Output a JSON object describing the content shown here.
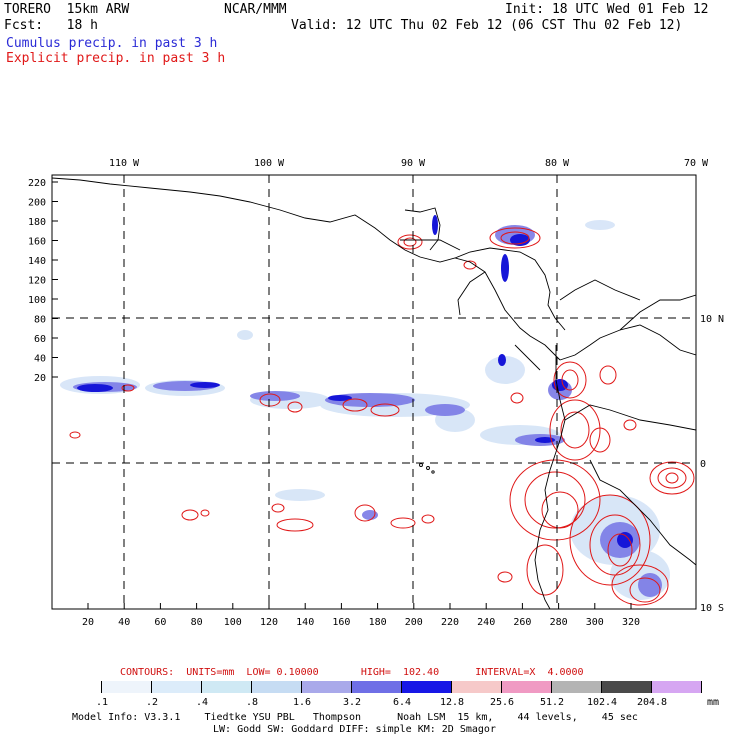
{
  "header": {
    "model": "TORERO  15km ARW",
    "org": "NCAR/MMM",
    "init": "Init: 18 UTC Wed 01 Feb 12",
    "fcst": "Fcst:   18 h",
    "valid": "Valid: 12 UTC Thu 02 Feb 12 (06 CST Thu 02 Feb 12)",
    "cumulus": "Cumulus precip. in past 3 h",
    "explicit": "Explicit precip. in past 3 h"
  },
  "map": {
    "top_lon_labels": [
      "110 W",
      "100 W",
      "90 W",
      "80 W",
      "70 W"
    ],
    "right_lat_labels": [
      "10 N",
      "0",
      "10 S"
    ],
    "y_axis_labels": [
      "220",
      "200",
      "180",
      "160",
      "140",
      "120",
      "100",
      "80",
      "60",
      "40",
      "20"
    ],
    "x_axis_labels": [
      "20",
      "40",
      "60",
      "80",
      "100",
      "120",
      "140",
      "160",
      "180",
      "200",
      "220",
      "240",
      "260",
      "280",
      "300",
      "320"
    ]
  },
  "legend": {
    "contours_text": "CONTOURS:  UNITS=mm  LOW= 0.10000       HIGH=  102.40      INTERVAL=X  4.0000",
    "colorbar_labels": [
      ".1",
      ".2",
      ".4",
      ".8",
      "1.6",
      "3.2",
      "6.4",
      "12.8",
      "25.6",
      "51.2",
      "102.4",
      "204.8"
    ],
    "unit": "mm",
    "colors": [
      "#ffffff",
      "#eef4fb",
      "#dcecfa",
      "#cfe9f4",
      "#c6dcf3",
      "#a9a9ea",
      "#6f6fe6",
      "#1717e6",
      "#f6c9c9",
      "#f09ac3",
      "#b4b4b4",
      "#4a4a4a",
      "#d6a6f2"
    ]
  },
  "footer": {
    "line1": "Model Info: V3.3.1    Tiedtke YSU PBL   Thompson      Noah LSM  15 km,    44 levels,    45 sec",
    "line2": "LW: Godd SW: Goddard DIFF: simple KM: 2D Smagor"
  }
}
